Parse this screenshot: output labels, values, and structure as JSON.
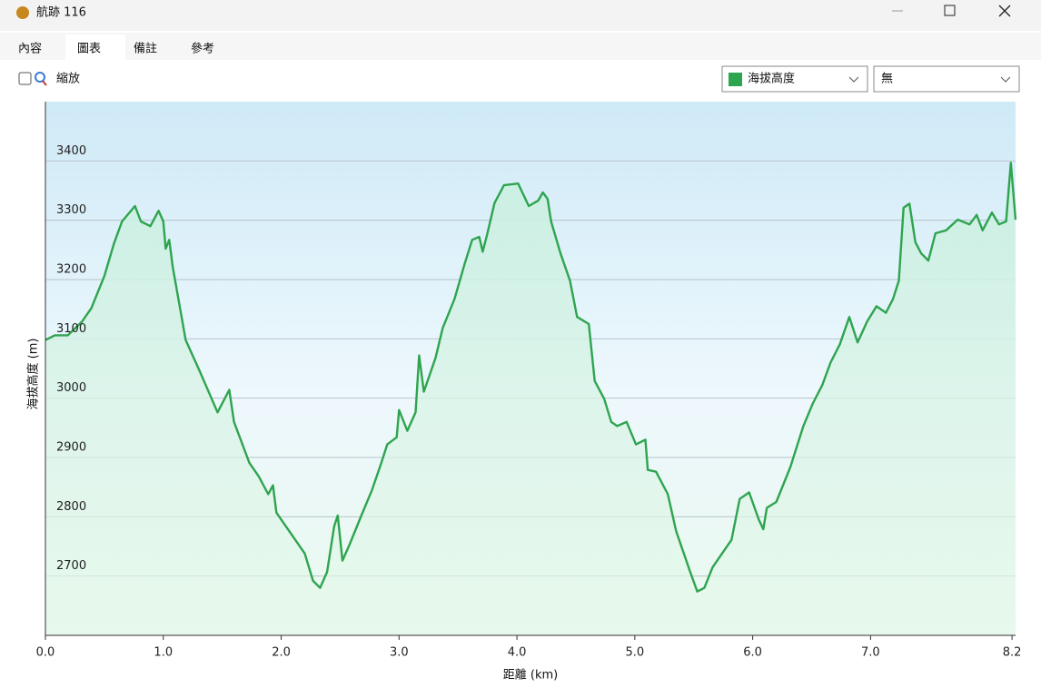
{
  "window": {
    "title": "航跡 116"
  },
  "tabs": [
    "內容",
    "圖表",
    "備註",
    "參考"
  ],
  "toolbar": {
    "zoom_label": "縮放",
    "second_select": "無"
  },
  "chart_data": {
    "type": "line",
    "x_label": "距離 (km)",
    "y_label": "海拔高度 (m)",
    "x": [
      0,
      0.08,
      0.19,
      0.31,
      0.39,
      0.5,
      0.58,
      0.65,
      0.76,
      0.81,
      0.89,
      0.96,
      1.0,
      1.02,
      1.05,
      1.08,
      1.19,
      1.31,
      1.46,
      1.56,
      1.6,
      1.73,
      1.81,
      1.89,
      1.93,
      1.96,
      2.12,
      2.2,
      2.27,
      2.33,
      2.39,
      2.45,
      2.48,
      2.52,
      2.58,
      2.68,
      2.77,
      2.85,
      2.9,
      2.98,
      3.0,
      3.07,
      3.14,
      3.17,
      3.21,
      3.31,
      3.37,
      3.47,
      3.56,
      3.62,
      3.68,
      3.71,
      3.75,
      3.81,
      3.89,
      4.01,
      4.1,
      4.18,
      4.22,
      4.26,
      4.29,
      4.37,
      4.45,
      4.51,
      4.61,
      4.66,
      4.74,
      4.8,
      4.85,
      4.93,
      5.01,
      5.09,
      5.11,
      5.18,
      5.28,
      5.35,
      5.47,
      5.53,
      5.59,
      5.66,
      5.74,
      5.82,
      5.89,
      5.97,
      6.05,
      6.09,
      6.12,
      6.2,
      6.32,
      6.43,
      6.51,
      6.59,
      6.66,
      6.74,
      6.82,
      6.89,
      6.97,
      7.05,
      7.13,
      7.19,
      7.24,
      7.28,
      7.33,
      7.38,
      7.43,
      7.49,
      7.55,
      7.64,
      7.74,
      7.84,
      7.9,
      7.95,
      8.03,
      8.09,
      8.15,
      8.19,
      8.23
    ],
    "series": [
      {
        "name": "海拔高度",
        "color": "#2ea44f",
        "values": [
          3098,
          3106,
          3106,
          3129,
          3152,
          3206,
          3260,
          3298,
          3324,
          3298,
          3290,
          3316,
          3298,
          3252,
          3267,
          3221,
          3098,
          3045,
          2976,
          3014,
          2960,
          2891,
          2868,
          2838,
          2853,
          2807,
          2761,
          2738,
          2692,
          2680,
          2707,
          2784,
          2802,
          2726,
          2753,
          2802,
          2845,
          2891,
          2922,
          2934,
          2980,
          2945,
          2976,
          3072,
          3011,
          3068,
          3118,
          3167,
          3229,
          3267,
          3272,
          3247,
          3278,
          3329,
          3359,
          3362,
          3324,
          3333,
          3347,
          3336,
          3298,
          3244,
          3198,
          3137,
          3125,
          3029,
          2999,
          2960,
          2953,
          2960,
          2922,
          2930,
          2879,
          2876,
          2838,
          2776,
          2707,
          2674,
          2680,
          2715,
          2738,
          2761,
          2830,
          2841,
          2796,
          2779,
          2815,
          2825,
          2884,
          2953,
          2991,
          3022,
          3060,
          3091,
          3137,
          3094,
          3129,
          3155,
          3144,
          3167,
          3198,
          3321,
          3328,
          3263,
          3244,
          3232,
          3278,
          3283,
          3301,
          3293,
          3309,
          3283,
          3313,
          3293,
          3298,
          3397,
          3301
        ]
      }
    ],
    "xlim": [
      0,
      8.23
    ],
    "ylim": [
      2600,
      3500
    ],
    "xticks": [
      {
        "value": 0,
        "label": "0.0"
      },
      {
        "value": 1,
        "label": "1.0"
      },
      {
        "value": 2,
        "label": "2.0"
      },
      {
        "value": 3,
        "label": "3.0"
      },
      {
        "value": 4,
        "label": "4.0"
      },
      {
        "value": 5,
        "label": "5.0"
      },
      {
        "value": 6,
        "label": "6.0"
      },
      {
        "value": 7,
        "label": "7.0"
      },
      8.2
    ],
    "yticks": [
      2700,
      2800,
      2900,
      3000,
      3100,
      3200,
      3300,
      3400
    ],
    "grid": true
  }
}
